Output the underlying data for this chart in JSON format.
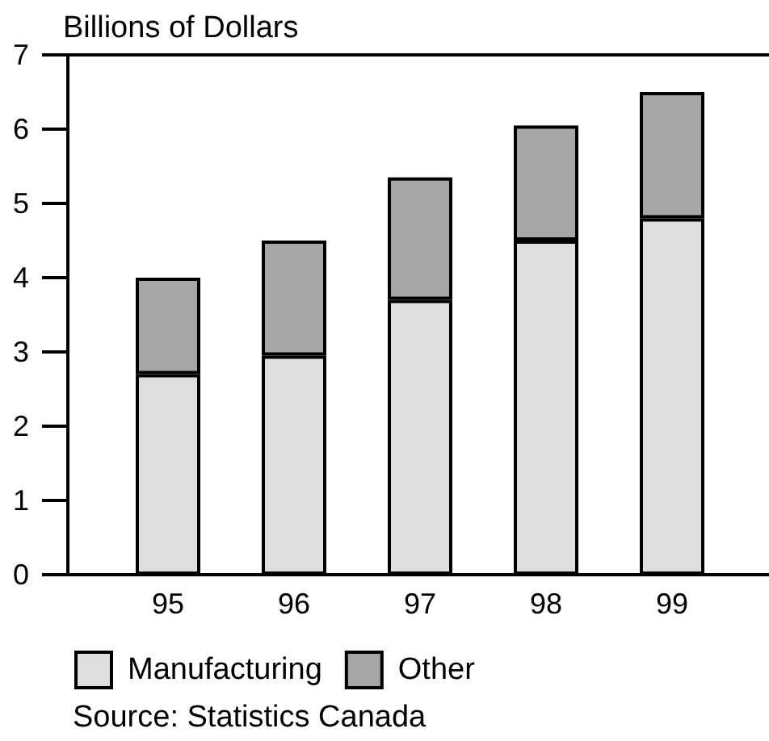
{
  "chart_data": {
    "type": "bar",
    "stacked": true,
    "ylabel": "Billions of Dollars",
    "categories": [
      "95",
      "96",
      "97",
      "98",
      "99"
    ],
    "series": [
      {
        "name": "Manufacturing",
        "color": "#dedede",
        "values": [
          2.7,
          2.95,
          3.7,
          4.5,
          4.8
        ]
      },
      {
        "name": "Other",
        "color": "#a6a6a6",
        "values": [
          1.3,
          1.55,
          1.65,
          1.55,
          1.7
        ]
      }
    ],
    "ylim": [
      0,
      7
    ],
    "yticks": [
      0,
      1,
      2,
      3,
      4,
      5,
      6,
      7
    ],
    "grid": false,
    "legend": "bottom",
    "annotations": [
      "Source: Statistics Canada"
    ]
  }
}
